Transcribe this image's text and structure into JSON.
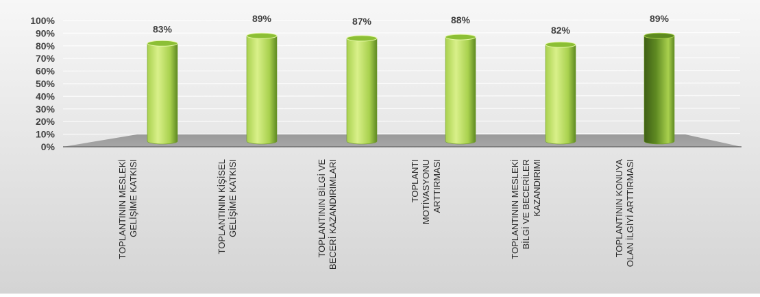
{
  "chart_data": {
    "type": "bar",
    "style": "3d-cylinder",
    "categories": [
      [
        "TOPLANTININ MESLEKİ",
        "GELİŞİME KATKISI"
      ],
      [
        "TOPLANTININ KİŞİSEL",
        "GELİŞİME KATKISI"
      ],
      [
        "TOPLANTININ BİLGİ VE",
        "BECERİ KAZANDIRIMLARI"
      ],
      [
        "TOPLANTI",
        "MOTİVASYONU",
        "ARTTIRMASI"
      ],
      [
        "TOPLANTININ MESLEKİ",
        "BİLGİ VE BECERİLER",
        "KAZANDIRIMI"
      ],
      [
        "TOPLANTININ KONUYA",
        "OLAN İLGİYİ ARTTIRMASI"
      ]
    ],
    "values": [
      83,
      89,
      87,
      88,
      82,
      89
    ],
    "value_labels": [
      "83%",
      "89%",
      "87%",
      "88%",
      "82%",
      "89%"
    ],
    "y_ticks": [
      "0%",
      "10%",
      "20%",
      "30%",
      "40%",
      "50%",
      "60%",
      "70%",
      "80%",
      "90%",
      "100%"
    ],
    "ylim": [
      0,
      100
    ],
    "grid": true,
    "legend": "none",
    "colors": {
      "bar_light": "#d9f08a",
      "bar_mid": "#a9d14e",
      "bar_dark": "#5f8a22",
      "bar_last_dark": "#3f5f16",
      "floor": "#a6a6a6",
      "background_top": "#f7f7f7",
      "background_bottom": "#d4d4d4",
      "text": "#404040"
    }
  }
}
